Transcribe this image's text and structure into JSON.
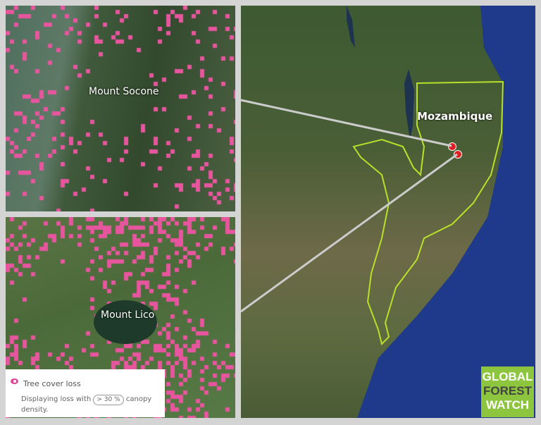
{
  "insets": {
    "top_label": "Mount Socone",
    "bottom_label": "Mount Lico"
  },
  "map": {
    "country_label": "Mozambique",
    "border_color": "#b8e02a",
    "marker_color": "#e02020"
  },
  "legend": {
    "title": "Tree cover loss",
    "desc_prefix": "Displaying loss with",
    "threshold": "> 30 %",
    "desc_suffix": "canopy density.",
    "loss_color": "#e8559f"
  },
  "logo": {
    "line1": "GLOBAL",
    "line2": "FOREST",
    "line3": "WATCH"
  }
}
